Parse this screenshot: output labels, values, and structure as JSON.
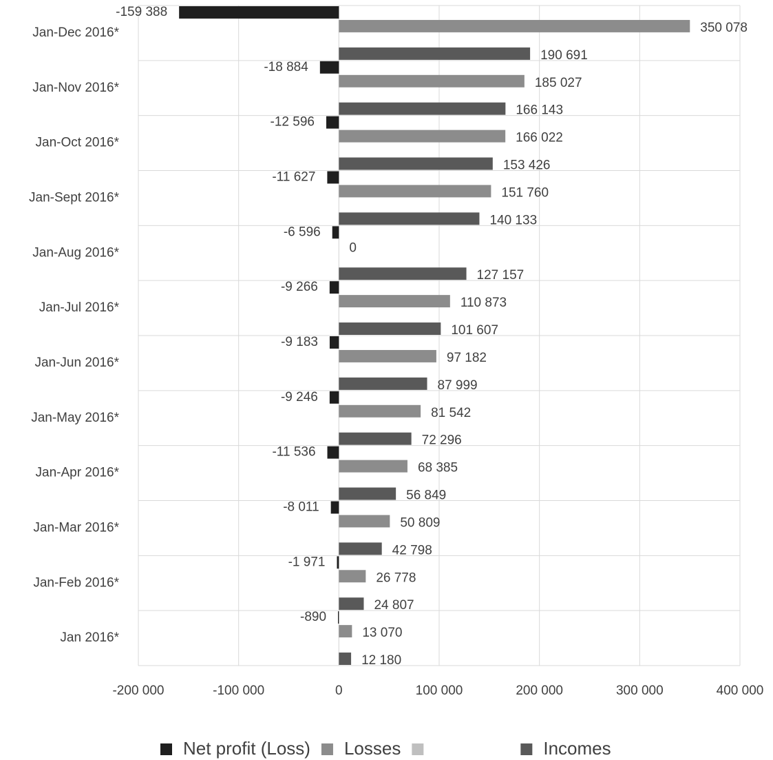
{
  "chart_data": {
    "type": "barh",
    "categories": [
      "Jan-Dec 2016*",
      "Jan-Nov 2016*",
      "Jan-Oct 2016*",
      "Jan-Sept 2016*",
      "Jan-Aug 2016*",
      "Jan-Jul 2016*",
      "Jan-Jun 2016*",
      "Jan-May 2016*",
      "Jan-Apr 2016*",
      "Jan-Mar 2016*",
      "Jan-Feb 2016*",
      "Jan 2016*"
    ],
    "series": [
      {
        "name": "Net profit (Loss)",
        "color": "#1f1f1f",
        "values": [
          -159388,
          -18884,
          -12596,
          -11627,
          -6596,
          -9266,
          -9183,
          -9246,
          -11536,
          -8011,
          -1971,
          -890
        ],
        "value_labels": [
          "-159 388",
          "-18 884",
          "-12 596",
          "-11 627",
          "-6 596",
          "-9 266",
          "-9 183",
          "-9 246",
          "-11 536",
          "-8 011",
          "-1 971",
          "-890"
        ]
      },
      {
        "name": "Losses",
        "color": "#8c8c8c",
        "values": [
          350078,
          185027,
          166022,
          151760,
          0,
          110873,
          97182,
          81542,
          68385,
          50809,
          26778,
          13070
        ],
        "value_labels": [
          "350 078",
          "185 027",
          "166 022",
          "151 760",
          "0",
          "110 873",
          "97 182",
          "81 542",
          "68 385",
          "50 809",
          "26 778",
          "13 070"
        ]
      },
      {
        "color": "#bfbfbf",
        "values": [
          null,
          null,
          null,
          null,
          null,
          null,
          null,
          null,
          null,
          null,
          null,
          null
        ]
      },
      {
        "name": "Incomes",
        "color": "#595959",
        "values": [
          190691,
          166143,
          153426,
          140133,
          127157,
          101607,
          87999,
          72296,
          56849,
          42798,
          24807,
          12180
        ],
        "value_labels": [
          "190 691",
          "166 143",
          "153 426",
          "140 133",
          "127 157",
          "101 607",
          "87 999",
          "72 296",
          "56 849",
          "42 798",
          "24 807",
          "12 180"
        ]
      }
    ],
    "xlim": [
      -200000,
      400000
    ],
    "xticks": [
      {
        "value": -200000,
        "label": "-200 000"
      },
      {
        "value": -100000,
        "label": "-100 000"
      },
      0,
      {
        "value": 100000,
        "label": "100 000"
      },
      {
        "value": 200000,
        "label": "200 000"
      },
      {
        "value": 300000,
        "label": "300 000"
      },
      {
        "value": 400000,
        "label": "400 000"
      }
    ],
    "grid": true,
    "legend": "bottom"
  }
}
